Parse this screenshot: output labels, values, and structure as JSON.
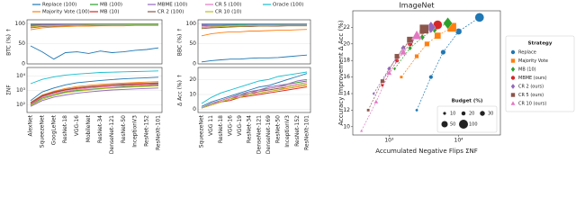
{
  "chart_data": [
    {
      "type": "line",
      "ylabel": "BTC (%) ↑",
      "ylim": [
        0,
        110
      ],
      "yticks": [
        0,
        50,
        100
      ],
      "grid": true,
      "series": [
        {
          "name": "Replace (100)",
          "color": "#1f77b4",
          "values": [
            45,
            30,
            12,
            28,
            30,
            26,
            32,
            28,
            30,
            34,
            36,
            40
          ]
        },
        {
          "name": "Majority Vote (100)",
          "color": "#ff7f0e",
          "values": [
            85,
            90,
            92,
            93,
            94,
            94,
            95,
            95,
            95,
            96,
            96,
            96
          ]
        },
        {
          "name": "MB (100)",
          "color": "#2ca02c",
          "values": [
            97,
            98,
            98,
            98,
            99,
            99,
            99,
            99,
            99,
            99,
            99,
            99
          ]
        },
        {
          "name": "MB (10)",
          "color": "#d62728",
          "values": [
            96,
            97,
            97,
            98,
            98,
            98,
            98,
            98,
            99,
            99,
            99,
            99
          ]
        },
        {
          "name": "MBME (100)",
          "color": "#9467bd",
          "values": [
            99,
            99,
            99,
            99,
            99,
            100,
            100,
            100,
            100,
            100,
            100,
            100
          ]
        },
        {
          "name": "CR 2 (100)",
          "color": "#8c564b",
          "values": [
            90,
            93,
            94,
            95,
            96,
            96,
            96,
            97,
            97,
            97,
            97,
            97
          ]
        },
        {
          "name": "CR 5 (100)",
          "color": "#e377c2",
          "values": [
            94,
            96,
            96,
            97,
            97,
            97,
            98,
            98,
            98,
            98,
            98,
            98
          ]
        },
        {
          "name": "CR 10 (10)",
          "color": "#bcbd22",
          "values": [
            92,
            95,
            95,
            96,
            96,
            97,
            97,
            97,
            97,
            98,
            98,
            98
          ]
        },
        {
          "name": "Oracle (100)",
          "color": "#17becf",
          "values": [
            100,
            100,
            100,
            100,
            100,
            100,
            100,
            100,
            100,
            100,
            100,
            100
          ]
        }
      ]
    },
    {
      "type": "line",
      "ylabel": "ΣNF",
      "yscale": "log",
      "ylim": [
        30,
        40000
      ],
      "yticks": [
        {
          "value": 100,
          "label": "10²"
        },
        {
          "value": 1000,
          "label": "10³"
        },
        {
          "value": 10000,
          "label": "10⁴"
        }
      ],
      "grid": true,
      "categories": [
        "AlexNet",
        "SqueezeNet",
        "GoogLeNet",
        "ResNet-18",
        "VGG-16",
        "MobileNet",
        "ResNet-34",
        "DenseNet-121",
        "ResNet-50",
        "InceptionV3",
        "ResNet-152",
        "ResNeXt-101"
      ],
      "series": [
        {
          "color": "#1f77b4",
          "values": [
            200,
            800,
            1500,
            2500,
            3500,
            4200,
            5000,
            5800,
            6500,
            7200,
            7800,
            8500
          ]
        },
        {
          "color": "#ff7f0e",
          "values": [
            150,
            500,
            900,
            1400,
            1900,
            2300,
            2700,
            3000,
            3300,
            3600,
            3900,
            4200
          ]
        },
        {
          "color": "#2ca02c",
          "values": [
            100,
            300,
            500,
            800,
            1000,
            1200,
            1400,
            1600,
            1800,
            2000,
            2200,
            2400
          ]
        },
        {
          "color": "#d62728",
          "values": [
            120,
            400,
            700,
            1100,
            1400,
            1700,
            2000,
            2300,
            2500,
            2700,
            2900,
            3100
          ]
        },
        {
          "color": "#9467bd",
          "values": [
            80,
            200,
            350,
            500,
            650,
            800,
            950,
            1100,
            1200,
            1300,
            1400,
            1500
          ]
        },
        {
          "color": "#8c564b",
          "values": [
            140,
            450,
            800,
            1200,
            1600,
            1900,
            2200,
            2500,
            2800,
            3000,
            3200,
            3400
          ]
        },
        {
          "color": "#e377c2",
          "values": [
            110,
            350,
            600,
            900,
            1200,
            1450,
            1700,
            1900,
            2100,
            2300,
            2500,
            2700
          ]
        },
        {
          "color": "#bcbd22",
          "values": [
            90,
            250,
            450,
            700,
            900,
            1100,
            1300,
            1500,
            1650,
            1800,
            1950,
            2100
          ]
        },
        {
          "color": "#17becf",
          "values": [
            3000,
            6000,
            9000,
            12000,
            14000,
            16000,
            18000,
            19000,
            20000,
            21000,
            22000,
            23000
          ]
        }
      ]
    },
    {
      "type": "line",
      "ylabel": "BBC (%) ↑",
      "ylim": [
        0,
        110
      ],
      "yticks": [
        0,
        50,
        100
      ],
      "grid": true,
      "series": [
        {
          "color": "#1f77b4",
          "values": [
            5,
            8,
            10,
            12,
            12,
            14,
            15,
            15,
            16,
            18,
            20,
            22
          ]
        },
        {
          "color": "#ff7f0e",
          "values": [
            70,
            75,
            78,
            80,
            80,
            82,
            82,
            83,
            84,
            84,
            85,
            86
          ]
        },
        {
          "color": "#2ca02c",
          "values": [
            95,
            96,
            96,
            97,
            97,
            97,
            98,
            98,
            98,
            98,
            98,
            98
          ]
        },
        {
          "color": "#d62728",
          "values": [
            99,
            99,
            99,
            100,
            100,
            100,
            100,
            100,
            100,
            100,
            100,
            100
          ]
        },
        {
          "color": "#9467bd",
          "values": [
            97,
            98,
            98,
            98,
            99,
            99,
            99,
            99,
            99,
            99,
            99,
            99
          ]
        },
        {
          "color": "#8c564b",
          "values": [
            88,
            90,
            91,
            92,
            93,
            93,
            94,
            94,
            94,
            95,
            95,
            95
          ]
        },
        {
          "color": "#e377c2",
          "values": [
            92,
            94,
            94,
            95,
            95,
            96,
            96,
            96,
            96,
            97,
            97,
            97
          ]
        },
        {
          "color": "#bcbd22",
          "values": [
            90,
            92,
            93,
            94,
            94,
            95,
            95,
            95,
            96,
            96,
            96,
            96
          ]
        },
        {
          "color": "#17becf",
          "values": [
            100,
            100,
            100,
            100,
            100,
            100,
            100,
            100,
            100,
            100,
            100,
            100
          ]
        }
      ]
    },
    {
      "type": "line",
      "ylabel": "Δ Acc (%) ↑",
      "ylim": [
        -2,
        28
      ],
      "yticks": [
        0,
        10,
        20
      ],
      "grid": true,
      "categories": [
        "SqueezeNet",
        "VGG 11",
        "ResNet-18",
        "VGG-16",
        "VGG-19",
        "ResNet-34",
        "DenseNet-121",
        "DenseNet-169",
        "ResNet-50",
        "InceptionV3",
        "ResNet-152",
        "ResNeXt-101"
      ],
      "series": [
        {
          "color": "#1f77b4",
          "values": [
            2,
            5,
            7,
            9,
            11,
            13,
            15,
            16,
            18,
            20,
            22,
            24
          ]
        },
        {
          "color": "#ff7f0e",
          "values": [
            1,
            3,
            5,
            7,
            8,
            10,
            11,
            12,
            13,
            14,
            15,
            16
          ]
        },
        {
          "color": "#2ca02c",
          "values": [
            1,
            4,
            6,
            8,
            10,
            11,
            13,
            14,
            15,
            17,
            18,
            19
          ]
        },
        {
          "color": "#d62728",
          "values": [
            1,
            3,
            5,
            6,
            8,
            9,
            10,
            11,
            12,
            13,
            14,
            15
          ]
        },
        {
          "color": "#9467bd",
          "values": [
            1,
            4,
            6,
            8,
            10,
            12,
            13,
            15,
            16,
            17,
            19,
            20
          ]
        },
        {
          "color": "#8c564b",
          "values": [
            1,
            3,
            5,
            7,
            9,
            10,
            12,
            13,
            14,
            15,
            16,
            17
          ]
        },
        {
          "color": "#e377c2",
          "values": [
            1,
            3,
            6,
            8,
            9,
            11,
            12,
            14,
            15,
            16,
            17,
            18
          ]
        },
        {
          "color": "#bcbd22",
          "values": [
            1,
            3,
            5,
            7,
            8,
            10,
            11,
            12,
            13,
            15,
            16,
            17
          ]
        },
        {
          "color": "#17becf",
          "values": [
            4,
            8,
            11,
            13,
            15,
            17,
            19,
            20,
            22,
            23,
            24,
            25
          ]
        }
      ]
    },
    {
      "type": "scatter",
      "title": "ImageNet",
      "xlabel": "Accumulated Negative Flips ΣNF",
      "ylabel": "Accuracy Improvement Δ Acc (%)",
      "xscale": "log",
      "xlim": [
        300,
        40000
      ],
      "xticks": [
        {
          "value": 1000,
          "label": "10³"
        },
        {
          "value": 10000,
          "label": "10⁴"
        }
      ],
      "ylim": [
        9,
        24
      ],
      "yticks": [
        10,
        12,
        14,
        16,
        18,
        20,
        22
      ],
      "legend_title": "Strategy",
      "budget_legend": {
        "title": "Budget (%)",
        "values": [
          10,
          20,
          30,
          50,
          100
        ]
      },
      "series": [
        {
          "name": "Replace",
          "color": "#1f77b4",
          "marker": "circle",
          "x": [
            2500,
            4000,
            6000,
            10000,
            20000
          ],
          "y": [
            12,
            16,
            19,
            21.5,
            23.2
          ],
          "sizes": [
            10,
            20,
            30,
            50,
            100
          ]
        },
        {
          "name": "Majority Vote",
          "color": "#ff7f0e",
          "marker": "square",
          "x": [
            1500,
            2500,
            3500,
            5000,
            8000
          ],
          "y": [
            16,
            18.5,
            20,
            21,
            22
          ],
          "sizes": [
            10,
            20,
            30,
            50,
            100
          ]
        },
        {
          "name": "MB (10)",
          "color": "#2ca02c",
          "marker": "diamond",
          "x": [
            1200,
            2000,
            3000,
            4500,
            7000
          ],
          "y": [
            17,
            19.5,
            20.8,
            21.8,
            22.5
          ],
          "sizes": [
            10,
            20,
            30,
            50,
            100
          ]
        },
        {
          "name": "MBME (ours)",
          "color": "#d62728",
          "marker": "circle",
          "x": [
            800,
            1300,
            2000,
            3000,
            5000
          ],
          "y": [
            15,
            18,
            20,
            21.5,
            22.3
          ],
          "sizes": [
            10,
            20,
            30,
            50,
            100
          ]
        },
        {
          "name": "CR 2 (ours)",
          "color": "#9467bd",
          "marker": "diamond",
          "x": [
            600,
            1000,
            1600,
            2500,
            4000
          ],
          "y": [
            14,
            17,
            19.5,
            21,
            22
          ],
          "sizes": [
            10,
            20,
            30,
            50,
            100
          ]
        },
        {
          "name": "CR 5 (ours)",
          "color": "#8c564b",
          "marker": "square",
          "x": [
            500,
            800,
            1300,
            2000,
            3200
          ],
          "y": [
            12,
            15.5,
            18.5,
            20.5,
            21.8
          ],
          "sizes": [
            10,
            20,
            30,
            50,
            100
          ]
        },
        {
          "name": "CR 10 (ours)",
          "color": "#e377c2",
          "marker": "triangle",
          "x": [
            400,
            650,
            1000,
            1600,
            2500
          ],
          "y": [
            9.5,
            13,
            16.5,
            19,
            21
          ],
          "sizes": [
            10,
            20,
            30,
            50,
            100
          ]
        }
      ]
    }
  ]
}
